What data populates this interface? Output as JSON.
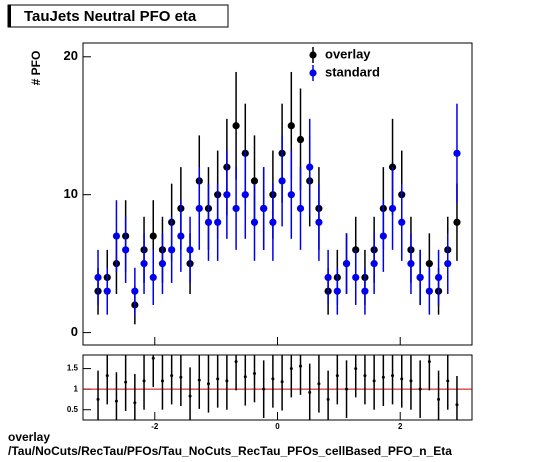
{
  "chart_data": [
    {
      "type": "errorbar",
      "title": "TauJets Neutral PFO eta",
      "ylabel": "# PFO",
      "x": [
        -2.925,
        -2.775,
        -2.625,
        -2.475,
        -2.325,
        -2.175,
        -2.025,
        -1.875,
        -1.725,
        -1.575,
        -1.425,
        -1.275,
        -1.125,
        -0.975,
        -0.825,
        -0.675,
        -0.525,
        -0.375,
        -0.225,
        -0.075,
        0.075,
        0.225,
        0.375,
        0.525,
        0.675,
        0.825,
        0.975,
        1.125,
        1.275,
        1.425,
        1.575,
        1.725,
        1.875,
        2.025,
        2.175,
        2.325,
        2.475,
        2.625,
        2.775,
        2.925
      ],
      "series": [
        {
          "name": "overlay",
          "color": "#000000",
          "values": [
            3,
            4,
            5,
            7,
            2,
            6,
            7,
            6,
            8,
            9,
            5,
            11,
            9,
            10,
            12,
            15,
            13,
            11,
            9,
            10,
            13,
            15,
            14,
            11,
            9,
            3,
            4,
            5,
            6,
            4,
            6,
            9,
            12,
            10,
            6,
            4,
            5,
            3,
            6,
            8
          ],
          "errors": [
            1.7,
            2,
            2.2,
            2.6,
            1.4,
            2.4,
            2.6,
            2.4,
            2.8,
            3,
            2.2,
            3.3,
            3,
            3.2,
            3.5,
            3.9,
            3.6,
            3.3,
            3,
            3.2,
            3.6,
            3.9,
            3.7,
            3.3,
            3,
            1.7,
            2,
            2.2,
            2.4,
            2,
            2.4,
            3,
            3.5,
            3.2,
            2.4,
            2,
            2.2,
            1.7,
            2.4,
            2.8
          ]
        },
        {
          "name": "standard",
          "color": "#0000ee",
          "values": [
            4,
            3,
            7,
            6,
            3,
            5,
            4,
            5,
            6,
            7,
            6,
            9,
            8,
            8,
            10,
            9,
            10,
            8,
            9,
            8,
            11,
            10,
            9,
            12,
            8,
            4,
            3,
            5,
            4,
            3,
            5,
            7,
            9,
            8,
            5,
            4,
            3,
            4,
            5,
            13
          ],
          "errors": [
            2,
            1.7,
            2.6,
            2.4,
            1.7,
            2.2,
            2,
            2.2,
            2.4,
            2.6,
            2.4,
            3,
            2.8,
            2.8,
            3.2,
            3,
            3.2,
            2.8,
            3,
            2.8,
            3.3,
            3.2,
            3,
            3.5,
            2.8,
            2,
            1.7,
            2.2,
            2,
            1.7,
            2.2,
            2.6,
            3,
            2.8,
            2.2,
            2,
            1.7,
            2,
            2.2,
            3.6
          ]
        }
      ],
      "xlim": [
        -3.17,
        3.17
      ],
      "xticks": [
        -2,
        0,
        2
      ],
      "ylim": [
        -0.9,
        21
      ],
      "yticks": [
        0,
        10,
        20
      ],
      "legend": "top-right"
    },
    {
      "type": "errorbar",
      "x": [
        -2.925,
        -2.775,
        -2.625,
        -2.475,
        -2.325,
        -2.175,
        -2.025,
        -1.875,
        -1.725,
        -1.575,
        -1.425,
        -1.275,
        -1.125,
        -0.975,
        -0.825,
        -0.675,
        -0.525,
        -0.375,
        -0.225,
        -0.075,
        0.075,
        0.225,
        0.375,
        0.525,
        0.675,
        0.825,
        0.975,
        1.125,
        1.275,
        1.425,
        1.575,
        1.725,
        1.875,
        2.025,
        2.175,
        2.325,
        2.475,
        2.625,
        2.775,
        2.925
      ],
      "series": [
        {
          "color": "#000000",
          "values": [
            0.75,
            1.33,
            0.71,
            1.17,
            0.67,
            1.2,
            1.75,
            1.2,
            1.33,
            1.29,
            0.83,
            1.22,
            1.13,
            1.25,
            1.2,
            1.67,
            1.3,
            1.38,
            1,
            1.25,
            1.18,
            1.5,
            1.56,
            0.92,
            1.13,
            0.75,
            1.33,
            1,
            1.5,
            1.33,
            1.2,
            1.29,
            1.33,
            1.25,
            1.2,
            1,
            1.67,
            0.75,
            1.2,
            0.62
          ],
          "errors": [
            0.7,
            0.7,
            0.7,
            0.7,
            0.7,
            0.7,
            0.7,
            0.7,
            0.7,
            0.7,
            0.7,
            0.7,
            0.7,
            0.7,
            0.7,
            0.7,
            0.7,
            0.7,
            0.7,
            0.7,
            0.7,
            0.7,
            0.7,
            0.7,
            0.7,
            0.7,
            0.7,
            0.7,
            0.7,
            0.7,
            0.7,
            0.7,
            0.7,
            0.7,
            0.7,
            0.7,
            0.7,
            0.7,
            0.7,
            0.7
          ]
        }
      ],
      "reference_line": 1,
      "reference_color": "#cc0000",
      "xlim": [
        -3.17,
        3.17
      ],
      "xticks": [
        -2,
        0,
        2
      ],
      "ylim": [
        0.25,
        1.83
      ],
      "yticks": [
        0.5,
        1,
        1.5
      ]
    }
  ],
  "footer": {
    "label": "overlay",
    "path": "/Tau/NoCuts/RecTau/PFOs/Tau_NoCuts_RecTau_PFOs_cellBased_PFO_n_Eta"
  }
}
